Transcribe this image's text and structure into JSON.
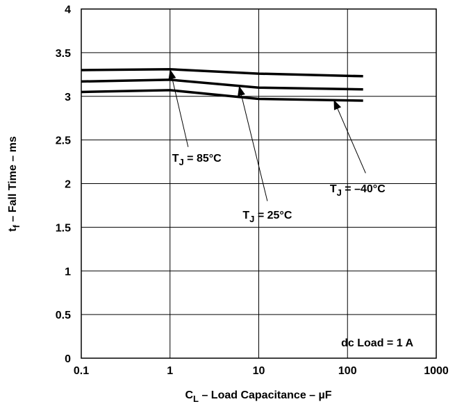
{
  "chart_data": {
    "type": "line",
    "title": "",
    "xlabel": {
      "main": "C",
      "sub": "L",
      "rest": " – Load Capacitance – µF"
    },
    "ylabel": {
      "main": "t",
      "sub": "f",
      "rest": "  – Fall Time – ms"
    },
    "xscale": "log",
    "xlim": [
      0.1,
      1000
    ],
    "ylim": [
      0,
      4
    ],
    "grid": true,
    "x_ticks": [
      {
        "value": 0.1,
        "label": "0.1"
      },
      {
        "value": 1,
        "label": "1"
      },
      {
        "value": 10,
        "label": "10"
      },
      {
        "value": 100,
        "label": "100"
      },
      {
        "value": 1000,
        "label": "1000"
      }
    ],
    "y_ticks": [
      {
        "value": 0,
        "label": "0"
      },
      {
        "value": 0.5,
        "label": "0.5"
      },
      {
        "value": 1,
        "label": "1"
      },
      {
        "value": 1.5,
        "label": "1.5"
      },
      {
        "value": 2,
        "label": "2"
      },
      {
        "value": 2.5,
        "label": "2.5"
      },
      {
        "value": 3,
        "label": "3"
      },
      {
        "value": 3.5,
        "label": "3.5"
      },
      {
        "value": 4,
        "label": "4"
      }
    ],
    "series": [
      {
        "name": "TJ = 85°C",
        "x": [
          0.1,
          1,
          10,
          150
        ],
        "y": [
          3.3,
          3.31,
          3.26,
          3.23
        ]
      },
      {
        "name": "TJ = 25°C",
        "x": [
          0.1,
          1,
          10,
          150
        ],
        "y": [
          3.17,
          3.19,
          3.1,
          3.08
        ]
      },
      {
        "name": "TJ = −40°C",
        "x": [
          0.1,
          1,
          10,
          150
        ],
        "y": [
          3.05,
          3.07,
          2.97,
          2.95
        ]
      }
    ],
    "annotations": [
      {
        "main": "T",
        "sub": "J",
        "rest": " = 85°C",
        "series": 0,
        "target": [
          1,
          3.31
        ],
        "text_at": [
          2.0,
          2.25
        ],
        "leader_from": [
          1.6,
          2.42
        ]
      },
      {
        "main": "T",
        "sub": "J",
        "rest": " = 25°C",
        "series": 1,
        "target": [
          6,
          3.12
        ],
        "text_at": [
          12.5,
          1.6
        ],
        "leader_from": [
          12.5,
          1.8
        ]
      },
      {
        "main": "T",
        "sub": "J",
        "rest": " = –40°C",
        "series": 2,
        "target": [
          70,
          2.96
        ],
        "text_at": [
          130,
          1.9
        ],
        "leader_from": [
          160,
          2.12
        ]
      }
    ],
    "note": "dc Load = 1 A"
  }
}
